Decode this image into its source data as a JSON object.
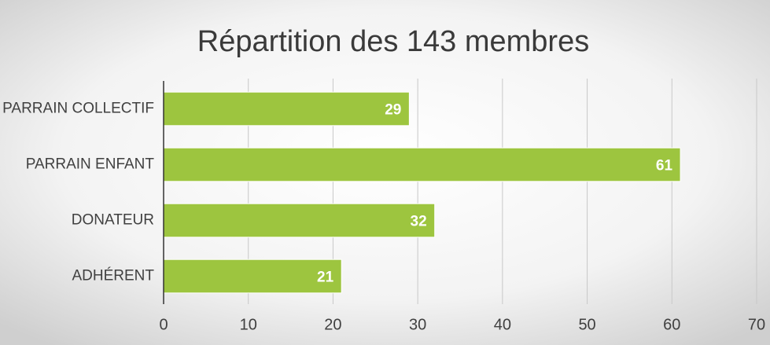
{
  "chart_data": {
    "type": "bar",
    "orientation": "horizontal",
    "title": "Répartition des 143 membres",
    "categories": [
      "PARRAIN COLLECTIF",
      "PARRAIN ENFANT",
      "DONATEUR",
      "ADHÉRENT"
    ],
    "values": [
      29,
      61,
      32,
      21
    ],
    "color": "#9dc53f",
    "xlim": [
      0,
      70
    ],
    "xticks": [
      0,
      10,
      20,
      30,
      40,
      50,
      60,
      70
    ],
    "grid": true,
    "data_labels": true
  }
}
